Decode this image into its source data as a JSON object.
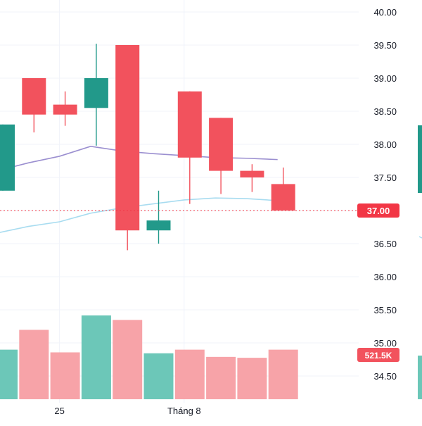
{
  "chart_data": {
    "type": "candlestick",
    "y_axis": {
      "ticks": [
        "40.00",
        "39.50",
        "39.00",
        "38.50",
        "38.00",
        "37.50",
        "37.00",
        "36.50",
        "36.00",
        "35.50",
        "35.00",
        "34.50"
      ],
      "range": [
        34.3,
        40.1
      ],
      "position": "right"
    },
    "x_axis": {
      "labels": [
        {
          "label": "25",
          "bar": 2
        },
        {
          "label": "Tháng 8",
          "bar": 6
        }
      ]
    },
    "bars": [
      {
        "o": 37.3,
        "h": 38.3,
        "l": 37.3,
        "c": 38.3,
        "dir": "up"
      },
      {
        "o": 39.0,
        "h": 39.0,
        "l": 38.18,
        "c": 38.45,
        "dir": "down"
      },
      {
        "o": 38.6,
        "h": 38.8,
        "l": 38.28,
        "c": 38.45,
        "dir": "down"
      },
      {
        "o": 38.55,
        "h": 39.52,
        "l": 37.98,
        "c": 39.0,
        "dir": "up"
      },
      {
        "o": 39.5,
        "h": 39.5,
        "l": 36.4,
        "c": 36.7,
        "dir": "down"
      },
      {
        "o": 36.7,
        "h": 37.3,
        "l": 36.5,
        "c": 36.85,
        "dir": "up"
      },
      {
        "o": 38.8,
        "h": 38.8,
        "l": 37.1,
        "c": 37.8,
        "dir": "down"
      },
      {
        "o": 38.4,
        "h": 38.4,
        "l": 37.25,
        "c": 37.6,
        "dir": "down"
      },
      {
        "o": 37.6,
        "h": 37.7,
        "l": 37.28,
        "c": 37.5,
        "dir": "down"
      },
      {
        "o": 37.4,
        "h": 37.65,
        "l": 37.0,
        "c": 37.0,
        "dir": "down"
      }
    ],
    "volume": {
      "last_label": "521.5K",
      "relative": [
        0.55,
        0.77,
        0.52,
        0.93,
        0.88,
        0.51,
        0.55,
        0.47,
        0.46,
        0.55
      ]
    },
    "moving_averages": [
      {
        "color": "#9b8fd0",
        "values": [
          37.6,
          37.72,
          37.82,
          37.97,
          37.9,
          37.86,
          37.83,
          37.8,
          37.79,
          37.77
        ]
      },
      {
        "color": "#a8dcf0",
        "values": [
          36.66,
          36.76,
          36.83,
          36.96,
          37.04,
          37.1,
          37.16,
          37.19,
          37.18,
          37.15
        ]
      }
    ],
    "current_price": {
      "label": "37.00",
      "value": 37.0,
      "color": "#f23645"
    },
    "colors": {
      "up": "#22998a",
      "down": "#f2525d",
      "up_volume": "#6cc7b8",
      "down_volume": "#f7a3a8",
      "grid": "#f0f3fa",
      "text": "#131722"
    }
  }
}
